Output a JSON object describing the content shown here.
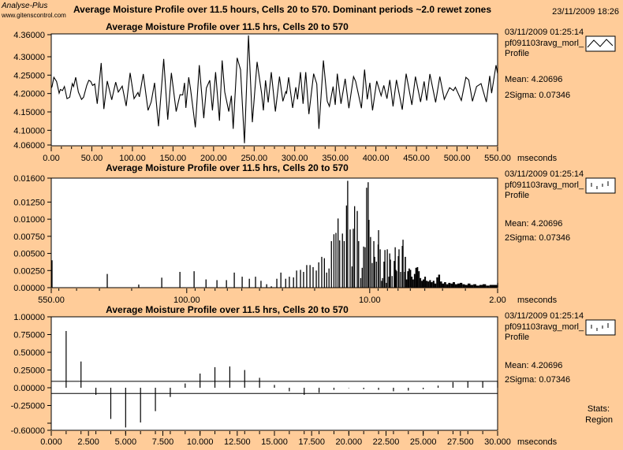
{
  "header": {
    "brand": "Analyse-Plus",
    "url": "www.gitenscontrol.com",
    "title": "Average Moisture Profile over 11.5 hours, Cells 20 to 570. Dominant periods ~2.0 rewet zones",
    "datetime": "23/11/2009 18:26"
  },
  "colors": {
    "background": "#FFCC99",
    "plot_bg": "#FFFFFF",
    "line": "#000000"
  },
  "panels": [
    {
      "date": "03/11/2009 01:25:14",
      "name": "pf091103ravg_morl_",
      "sub": "Profile",
      "legend_icon": "line-sample-icon",
      "mean": "Mean: 4.20696",
      "sigma": "2Sigma: 0.07346"
    },
    {
      "date": "03/11/2009 01:25:14",
      "name": "pf091103ravg_morl_",
      "sub": "Profile",
      "legend_icon": "bar-sample-icon",
      "mean": "Mean: 4.20696",
      "sigma": "2Sigma: 0.07346"
    },
    {
      "date": "03/11/2009 01:25:14",
      "name": "pf091103ravg_morl_",
      "sub": "Profile",
      "legend_icon": "bar-sample-icon",
      "mean": "Mean: 4.20696",
      "sigma": "2Sigma: 0.07346",
      "stats": "Stats:",
      "region": "Region"
    }
  ],
  "chart_data": [
    {
      "type": "line",
      "title": "Average Moisture Profile over 11.5 hrs, Cells 20 to 570",
      "xunit": "mseconds",
      "xlim": [
        0,
        550
      ],
      "ylim": [
        4.06,
        4.36
      ],
      "xticks": [
        "0.00",
        "50.00",
        "100.00",
        "150.00",
        "200.00",
        "250.00",
        "300.00",
        "350.00",
        "400.00",
        "450.00",
        "500.00",
        "550.00"
      ],
      "yticks": [
        "4.36000",
        "4.30000",
        "4.25000",
        "4.20000",
        "4.15000",
        "4.10000",
        "4.06000"
      ],
      "points": [
        [
          0,
          4.215
        ],
        [
          1,
          4.219
        ],
        [
          3.2,
          4.244
        ],
        [
          6.5,
          4.233
        ],
        [
          9.7,
          4.201
        ],
        [
          11.3,
          4.211
        ],
        [
          13.9,
          4.208
        ],
        [
          16.2,
          4.219
        ],
        [
          19.4,
          4.186
        ],
        [
          22.7,
          4.19
        ],
        [
          25.9,
          4.227
        ],
        [
          27.5,
          4.219
        ],
        [
          30.1,
          4.244
        ],
        [
          33.4,
          4.204
        ],
        [
          37.3,
          4.184
        ],
        [
          39.8,
          4.19
        ],
        [
          43.7,
          4.222
        ],
        [
          46.3,
          4.236
        ],
        [
          48.6,
          4.233
        ],
        [
          50.9,
          4.222
        ],
        [
          53.5,
          4.226
        ],
        [
          56.7,
          4.172
        ],
        [
          61.5,
          4.283
        ],
        [
          64.8,
          4.158
        ],
        [
          69,
          4.234
        ],
        [
          74.5,
          4.183
        ],
        [
          79.4,
          4.231
        ],
        [
          82.6,
          4.204
        ],
        [
          87.5,
          4.22
        ],
        [
          92.3,
          4.166
        ],
        [
          97.2,
          4.256
        ],
        [
          102,
          4.186
        ],
        [
          106.9,
          4.203
        ],
        [
          108.5,
          4.191
        ],
        [
          113.4,
          4.253
        ],
        [
          119.2,
          4.154
        ],
        [
          123.1,
          4.177
        ],
        [
          127.3,
          4.229
        ],
        [
          132.2,
          4.111
        ],
        [
          138.6,
          4.294
        ],
        [
          143.5,
          4.129
        ],
        [
          148,
          4.256
        ],
        [
          153.9,
          4.151
        ],
        [
          158.7,
          4.197
        ],
        [
          162,
          4.196
        ],
        [
          164.2,
          4.229
        ],
        [
          165.9,
          4.161
        ],
        [
          169.4,
          4.244
        ],
        [
          171.7,
          4.211
        ],
        [
          177.5,
          4.108
        ],
        [
          182.4,
          4.277
        ],
        [
          187.9,
          4.133
        ],
        [
          191.1,
          4.215
        ],
        [
          195.3,
          4.236
        ],
        [
          198.6,
          4.154
        ],
        [
          202.5,
          4.258
        ],
        [
          207.3,
          4.126
        ],
        [
          210.6,
          4.29
        ],
        [
          213.8,
          4.204
        ],
        [
          218.7,
          4.151
        ],
        [
          221.9,
          4.194
        ],
        [
          224.2,
          4.104
        ],
        [
          229,
          4.297
        ],
        [
          233.2,
          4.265
        ],
        [
          238.1,
          4.065
        ],
        [
          243,
          4.358
        ],
        [
          247.8,
          4.122
        ],
        [
          253.6,
          4.286
        ],
        [
          259.2,
          4.201
        ],
        [
          261.4,
          4.154
        ],
        [
          264,
          4.236
        ],
        [
          267.3,
          4.176
        ],
        [
          271.1,
          4.258
        ],
        [
          276.2,
          4.151
        ],
        [
          281.2,
          4.246
        ],
        [
          285.4,
          4.179
        ],
        [
          289,
          4.205
        ],
        [
          290,
          4.201
        ],
        [
          292.5,
          4.244
        ],
        [
          297.4,
          4.161
        ],
        [
          301.3,
          4.217
        ],
        [
          303.5,
          4.184
        ],
        [
          307.1,
          4.258
        ],
        [
          310.3,
          4.172
        ],
        [
          313.6,
          4.258
        ],
        [
          317.5,
          4.144
        ],
        [
          323.3,
          4.254
        ],
        [
          327.2,
          4.226
        ],
        [
          329.8,
          4.104
        ],
        [
          335.3,
          4.29
        ],
        [
          340.1,
          4.179
        ],
        [
          342.7,
          4.165
        ],
        [
          347.3,
          4.219
        ],
        [
          349.9,
          4.169
        ],
        [
          352.4,
          4.254
        ],
        [
          357,
          4.172
        ],
        [
          362.2,
          4.24
        ],
        [
          366.7,
          4.16
        ],
        [
          372.5,
          4.246
        ],
        [
          375.1,
          4.233
        ],
        [
          382.2,
          4.16
        ],
        [
          386.1,
          4.265
        ],
        [
          389.4,
          4.184
        ],
        [
          392.6,
          4.229
        ],
        [
          395.9,
          4.154
        ],
        [
          401,
          4.234
        ],
        [
          406.5,
          4.194
        ],
        [
          409.8,
          4.222
        ],
        [
          413.7,
          4.186
        ],
        [
          417.2,
          4.237
        ],
        [
          421.1,
          4.165
        ],
        [
          425.3,
          4.237
        ],
        [
          432.5,
          4.156
        ],
        [
          437.3,
          4.254
        ],
        [
          444.4,
          4.169
        ],
        [
          448.7,
          4.246
        ],
        [
          455.1,
          4.177
        ],
        [
          459.4,
          4.233
        ],
        [
          462.6,
          4.181
        ],
        [
          466.5,
          4.253
        ],
        [
          473.6,
          4.176
        ],
        [
          478.8,
          4.246
        ],
        [
          484.3,
          4.184
        ],
        [
          490.8,
          4.216
        ],
        [
          495.6,
          4.208
        ],
        [
          497.9,
          4.217
        ],
        [
          505.3,
          4.181
        ],
        [
          510.9,
          4.244
        ],
        [
          514.4,
          4.237
        ],
        [
          519,
          4.179
        ],
        [
          524.1,
          4.219
        ],
        [
          529.6,
          4.227
        ],
        [
          536.1,
          4.177
        ],
        [
          540.3,
          4.248
        ],
        [
          542.6,
          4.201
        ],
        [
          548.1,
          4.277
        ],
        [
          550,
          4.254
        ]
      ]
    },
    {
      "type": "bar",
      "title": "Average Moisture Profile over 11.5 hrs, Cells 20 to 570",
      "xunit": "mseconds",
      "xscale": "log-reversed",
      "xlim": [
        550,
        2
      ],
      "ylim": [
        0,
        0.016
      ],
      "xticks": [
        {
          "v": 550,
          "label": "550.00"
        },
        {
          "v": 100,
          "label": "100.00"
        },
        {
          "v": 10,
          "label": "10.00"
        },
        {
          "v": 2,
          "label": "2.00"
        }
      ],
      "yticks": [
        "0.01600",
        "0.01250",
        "0.01000",
        "0.00750",
        "0.00500",
        "0.00250",
        "0.00000"
      ],
      "ytick_values": [
        0.016,
        0.0125,
        0.01,
        0.0075,
        0.005,
        0.0025,
        0
      ],
      "bars": [
        [
          545,
          0.004
        ],
        [
          272,
          0.002
        ],
        [
          183,
          0.00045
        ],
        [
          137,
          0.00146
        ],
        [
          109,
          0.0023
        ],
        [
          91.2,
          0.0024
        ],
        [
          78.5,
          0.0012
        ],
        [
          68.4,
          0.0011
        ],
        [
          60.7,
          0.0011
        ],
        [
          55,
          0.0022
        ],
        [
          49.8,
          0.0016
        ],
        [
          45.5,
          0.0013
        ],
        [
          42.1,
          0.0016
        ],
        [
          39.3,
          0.001
        ],
        [
          36.6,
          0.0005
        ],
        [
          34.5,
          0.0002
        ],
        [
          32.2,
          0.0013
        ],
        [
          30.6,
          0.0022
        ],
        [
          28.8,
          0.0013
        ],
        [
          27.5,
          0.0016
        ],
        [
          26.1,
          0.0015
        ],
        [
          25.1,
          0.0025
        ],
        [
          23.9,
          0.0026
        ],
        [
          23,
          0.0023
        ],
        [
          22.1,
          0.0033
        ],
        [
          21.2,
          0.0033
        ],
        [
          20.4,
          0.003
        ],
        [
          19.6,
          0.0025
        ],
        [
          19,
          0.0037
        ],
        [
          18.3,
          0.0045
        ],
        [
          17.7,
          0.0043
        ],
        [
          17.2,
          0.0022
        ],
        [
          16.7,
          0.0028
        ],
        [
          16.2,
          0.0068
        ],
        [
          15.7,
          0.0078
        ],
        [
          15.3,
          0.008
        ],
        [
          14.9,
          0.0101
        ],
        [
          14.6,
          0.0069
        ],
        [
          14.1,
          0.0079
        ],
        [
          13.8,
          0.0068
        ],
        [
          13.4,
          0.012
        ],
        [
          13.2,
          0.0156
        ],
        [
          12.8,
          0.0085
        ],
        [
          12.5,
          0.0031
        ],
        [
          12.3,
          0.0086
        ],
        [
          12.1,
          0.0119
        ],
        [
          11.7,
          0.0112
        ],
        [
          11.5,
          0.0068
        ],
        [
          11.2,
          0.0014
        ],
        [
          11,
          0.0029
        ],
        [
          10.8,
          0.006
        ],
        [
          10.6,
          0.0059
        ],
        [
          10.4,
          0.0146
        ],
        [
          10.2,
          0.0154
        ],
        [
          10.1,
          0.0099
        ],
        [
          9.9,
          0.0074
        ],
        [
          9.7,
          0.0036
        ],
        [
          9.5,
          0.0068
        ],
        [
          9.4,
          0.0045
        ],
        [
          9.2,
          0.0038
        ],
        [
          9,
          0.0063
        ],
        [
          8.95,
          0.0084
        ],
        [
          8.77,
          0.0056
        ],
        [
          8.61,
          0.001
        ],
        [
          8.51,
          0.0014
        ],
        [
          8.36,
          0.0038
        ],
        [
          8.26,
          0.0055
        ],
        [
          8.11,
          0.0007
        ],
        [
          8.02,
          0.0056
        ],
        [
          7.87,
          0.0016
        ],
        [
          7.78,
          0.005
        ],
        [
          7.71,
          0.0041
        ],
        [
          7.55,
          0.0017
        ],
        [
          7.35,
          0.0039
        ],
        [
          7.26,
          0.0059
        ],
        [
          7.19,
          0.0026
        ],
        [
          7.13,
          0.0024
        ],
        [
          6.98,
          0.0046
        ],
        [
          6.92,
          0.0056
        ],
        [
          6.78,
          0.0023
        ],
        [
          6.64,
          0.0061
        ],
        [
          6.58,
          0.007
        ],
        [
          6.45,
          0.0023
        ]
      ],
      "tail": [
        [
          6.4,
          0.0045
        ],
        [
          6.3,
          0.0012
        ],
        [
          6.2,
          0.0024
        ],
        [
          6.1,
          0.0028
        ],
        [
          6.0,
          0.0026
        ],
        [
          5.9,
          0.0016
        ],
        [
          5.8,
          0.0012
        ],
        [
          5.7,
          0.002
        ],
        [
          5.6,
          0.0029
        ],
        [
          5.5,
          0.003
        ],
        [
          5.4,
          0.0024
        ],
        [
          5.3,
          0.0014
        ],
        [
          5.2,
          0.001
        ],
        [
          5.1,
          0.0012
        ],
        [
          5.0,
          0.0016
        ],
        [
          4.9,
          0.001
        ],
        [
          4.8,
          0.0009
        ],
        [
          4.7,
          0.0011
        ],
        [
          4.6,
          0.0008
        ],
        [
          4.5,
          0.001
        ],
        [
          4.4,
          0.0006
        ],
        [
          4.3,
          0.0015
        ],
        [
          4.2,
          0.0019
        ],
        [
          4.1,
          0.0009
        ],
        [
          4.0,
          0.0006
        ],
        [
          3.9,
          0.0008
        ],
        [
          3.8,
          0.0005
        ],
        [
          3.7,
          0.0007
        ],
        [
          3.6,
          0.0006
        ],
        [
          3.5,
          0.0008
        ],
        [
          3.4,
          0.0005
        ],
        [
          3.3,
          0.0006
        ],
        [
          3.2,
          0.0007
        ],
        [
          3.1,
          0.0005
        ],
        [
          3.0,
          0.0004
        ],
        [
          2.9,
          0.0006
        ],
        [
          2.8,
          0.0004
        ],
        [
          2.7,
          0.0005
        ],
        [
          2.6,
          0.0003
        ],
        [
          2.5,
          0.0004
        ],
        [
          2.4,
          0.0005
        ],
        [
          2.3,
          0.0003
        ],
        [
          2.2,
          0.0004
        ],
        [
          2.1,
          0.0004
        ],
        [
          2.0,
          0.0007
        ]
      ]
    },
    {
      "type": "bar",
      "title": "Average Moisture Profile over 11.5 hrs, Cells 20 to 570",
      "xunit": "mseconds",
      "xlim": [
        0,
        30
      ],
      "ylim": [
        -0.6,
        1.0
      ],
      "xticks": [
        "0.000",
        "2.500",
        "5.000",
        "7.500",
        "10.000",
        "12.500",
        "15.000",
        "17.500",
        "20.000",
        "22.500",
        "25.000",
        "27.500",
        "30.000"
      ],
      "yticks": [
        {
          "v": 1.0,
          "label": "1.00000"
        },
        {
          "v": 0.75,
          "label": "0.75000"
        },
        {
          "v": 0.5,
          "label": "0.50000"
        },
        {
          "v": 0.25,
          "label": "0.25000"
        },
        {
          "v": 0,
          "label": "0.00000"
        },
        {
          "v": -0.25,
          "label": "-0.25000"
        },
        {
          "v": -0.5,
          "label": ""
        },
        {
          "v": -0.6,
          "label": "-0.60000"
        }
      ],
      "threshold_upper": 0.09,
      "threshold_lower": -0.08,
      "x": [
        1,
        2,
        3,
        4,
        5,
        6,
        7,
        8,
        9,
        10,
        11,
        12,
        13,
        14,
        15,
        16,
        17,
        18,
        19,
        20,
        21,
        22,
        23,
        24,
        25,
        26,
        27,
        28,
        29,
        30
      ],
      "values": [
        0.8,
        0.37,
        -0.1,
        -0.44,
        -0.56,
        -0.49,
        -0.33,
        -0.13,
        0.06,
        0.2,
        0.29,
        0.3,
        0.25,
        0.14,
        0.04,
        -0.05,
        -0.1,
        -0.07,
        -0.03,
        -0.005,
        -0.02,
        -0.03,
        -0.05,
        -0.04,
        -0.02,
        0.03,
        0.08,
        0.09,
        0.09,
        0.09
      ]
    }
  ]
}
